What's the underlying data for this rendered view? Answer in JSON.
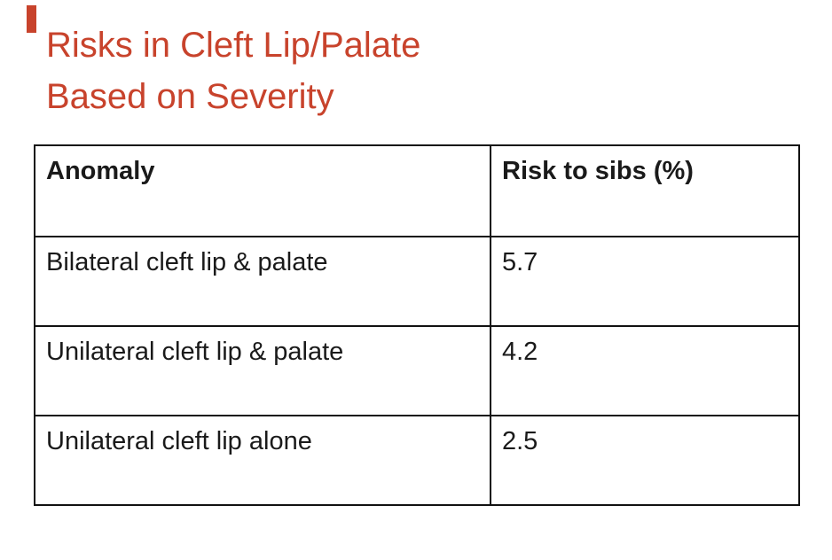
{
  "slide": {
    "title_line1": "Risks in Cleft Lip/Palate",
    "title_line2": "Based on Severity",
    "accent_color": "#c8432c"
  },
  "table": {
    "headers": [
      "Anomaly",
      "Risk to sibs (%)"
    ],
    "rows": [
      {
        "anomaly": "Bilateral cleft lip & palate",
        "risk": "5.7"
      },
      {
        "anomaly": "Unilateral cleft lip & palate",
        "risk": "4.2"
      },
      {
        "anomaly": "Unilateral cleft lip alone",
        "risk": "2.5"
      }
    ]
  }
}
